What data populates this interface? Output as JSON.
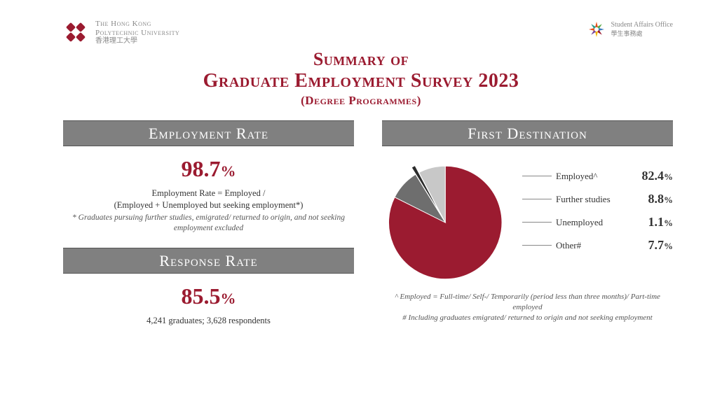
{
  "colors": {
    "brand": "#9b1b30",
    "banner_bg": "#808080",
    "banner_fg": "#ffffff",
    "text": "#333333",
    "muted": "#888888"
  },
  "header": {
    "uni_en_line1": "The Hong Kong",
    "uni_en_line2": "Polytechnic University",
    "uni_zh": "香港理工大學",
    "sao_en": "Student Affairs Office",
    "sao_zh": "學生事務處"
  },
  "title": {
    "line1": "Summary of",
    "line2": "Graduate Employment Survey 2023",
    "line3": "(Degree Programmes)"
  },
  "employment_rate": {
    "banner": "Employment Rate",
    "value": "98.7",
    "formula_line1": "Employment Rate = Employed /",
    "formula_line2": "(Employed + Unemployed but seeking employment*)",
    "note": "* Graduates pursuing further studies, emigrated/ returned to origin, and not seeking employment excluded"
  },
  "response_rate": {
    "banner": "Response Rate",
    "value": "85.5",
    "sub": "4,241 graduates; 3,628 respondents"
  },
  "first_destination": {
    "banner": "First Destination",
    "slices": [
      {
        "label": "Employed^",
        "value": 82.4,
        "color": "#9b1b30"
      },
      {
        "label": "Further studies",
        "value": 8.8,
        "color": "#6e6e6e"
      },
      {
        "label": "Unemployed",
        "value": 1.1,
        "color": "#2b2b2b"
      },
      {
        "label": "Other#",
        "value": 7.7,
        "color": "#c8c8c8"
      }
    ],
    "exploded_index": 2,
    "note1": "^ Employed = Full-time/ Self-/ Temporarily (period less than three months)/ Part-time employed",
    "note2": "# Including graduates emigrated/ returned to origin and not seeking employment"
  }
}
